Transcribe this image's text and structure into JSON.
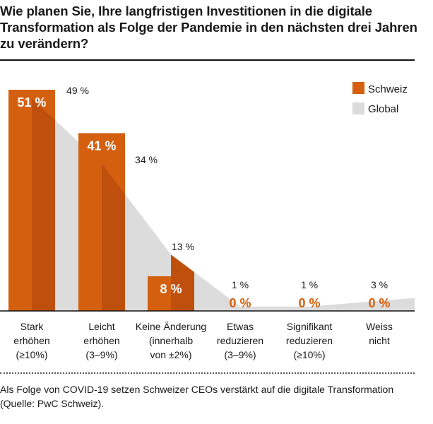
{
  "title": "Wie planen Sie, Ihre langfristigen Investitionen in die digitale Transformation als Folge der Pandemie in den nächsten drei Jahren zu verändern?",
  "note": "Als Folge von COVID-19 setzen Schweizer CEOs verstärkt auf die digitale Transformation (Quelle: PwC Schweiz).",
  "colors": {
    "schweiz": "#d4600f",
    "global": "#dcdcdc",
    "overlap": "#bf4f0c"
  },
  "chart_data": {
    "type": "bar",
    "categories": [
      [
        "Stark",
        "erhöhen",
        "(≥10%)"
      ],
      [
        "Leicht",
        "erhöhen",
        "(3–9%)"
      ],
      [
        "Keine Änderung",
        "(innerhalb",
        "von ±2%)"
      ],
      [
        "Etwas",
        "reduzieren",
        "(3–9%)"
      ],
      [
        "Signifikant",
        "reduzieren",
        "(≥10%)"
      ],
      [
        "Weiss",
        "nicht"
      ]
    ],
    "series": [
      {
        "name": "Schweiz",
        "type": "bar",
        "values": [
          51,
          41,
          8,
          0,
          0,
          0
        ],
        "labels": [
          "51 %",
          "41 %",
          "8 %",
          "0 %",
          "0 %",
          "0 %"
        ]
      },
      {
        "name": "Global",
        "type": "area",
        "values": [
          49,
          34,
          13,
          1,
          1,
          3
        ],
        "labels": [
          "49 %",
          "34 %",
          "13 %",
          "1 %",
          "1 %",
          "3 %"
        ]
      }
    ],
    "ylim": [
      0,
      51
    ],
    "legend": "top-right"
  }
}
